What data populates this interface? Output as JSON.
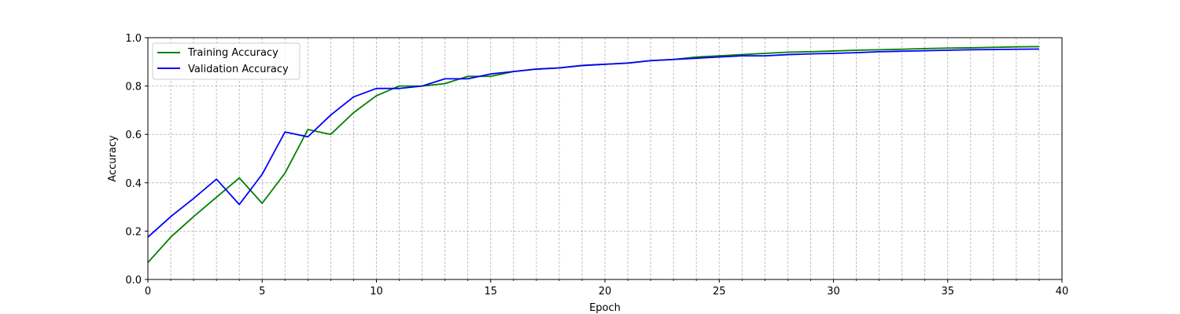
{
  "chart_data": {
    "type": "line",
    "xlabel": "Epoch",
    "ylabel": "Accuracy",
    "xlim": [
      0,
      40
    ],
    "ylim": [
      0,
      1.0
    ],
    "x_major_ticks": [
      0,
      5,
      10,
      15,
      20,
      25,
      30,
      35,
      40
    ],
    "y_major_ticks": [
      0.0,
      0.2,
      0.4,
      0.6,
      0.8,
      1.0
    ],
    "x_tick_labels": [
      "0",
      "5",
      "10",
      "15",
      "20",
      "25",
      "30",
      "35",
      "40"
    ],
    "y_tick_labels": [
      "0.0",
      "0.2",
      "0.4",
      "0.6",
      "0.8",
      "1.0"
    ],
    "grid": true,
    "legend_position": "top-left",
    "x": [
      0,
      1,
      2,
      3,
      4,
      5,
      6,
      7,
      8,
      9,
      10,
      11,
      12,
      13,
      14,
      15,
      16,
      17,
      18,
      19,
      20,
      21,
      22,
      23,
      24,
      25,
      26,
      27,
      28,
      29,
      30,
      31,
      32,
      33,
      34,
      35,
      36,
      37,
      38,
      39
    ],
    "series": [
      {
        "name": "Training Accuracy",
        "color": "#008000",
        "values": [
          0.07,
          0.175,
          0.26,
          0.34,
          0.42,
          0.315,
          0.44,
          0.62,
          0.6,
          0.69,
          0.76,
          0.8,
          0.8,
          0.81,
          0.84,
          0.84,
          0.86,
          0.87,
          0.875,
          0.885,
          0.89,
          0.895,
          0.905,
          0.91,
          0.92,
          0.925,
          0.93,
          0.935,
          0.94,
          0.942,
          0.945,
          0.948,
          0.95,
          0.952,
          0.955,
          0.957,
          0.958,
          0.96,
          0.962,
          0.963
        ]
      },
      {
        "name": "Validation Accuracy",
        "color": "#0000ff",
        "values": [
          0.175,
          0.26,
          0.335,
          0.415,
          0.31,
          0.435,
          0.61,
          0.59,
          0.68,
          0.755,
          0.79,
          0.79,
          0.8,
          0.83,
          0.83,
          0.85,
          0.86,
          0.87,
          0.875,
          0.885,
          0.89,
          0.895,
          0.905,
          0.91,
          0.915,
          0.92,
          0.925,
          0.925,
          0.93,
          0.933,
          0.935,
          0.938,
          0.942,
          0.944,
          0.946,
          0.948,
          0.95,
          0.951,
          0.952,
          0.953
        ]
      }
    ]
  }
}
